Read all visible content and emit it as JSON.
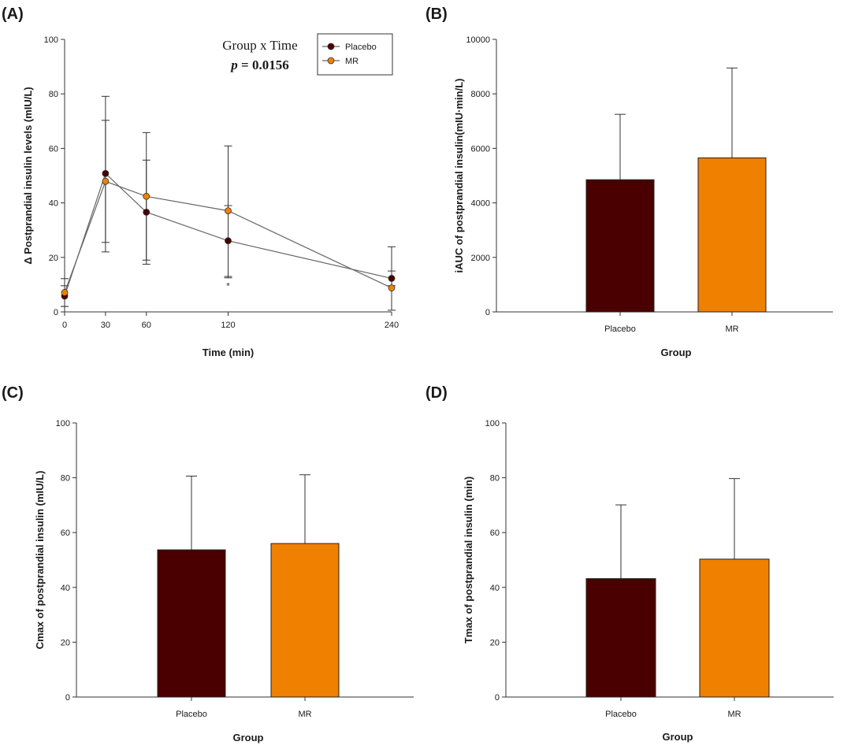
{
  "colors": {
    "placebo": "#4a0000",
    "mr": "#f08000",
    "axis": "#333333",
    "line": "#666666"
  },
  "chart_data": [
    {
      "id": "A",
      "panel_label": "(A)",
      "type": "line",
      "xlabel": "Time (min)",
      "ylabel": "Δ Postprandial insulin levels (mIU/L)",
      "xlim": [
        0,
        240
      ],
      "ylim": [
        0,
        100
      ],
      "x_ticks": [
        0,
        30,
        60,
        120,
        240
      ],
      "y_ticks": [
        0,
        20,
        40,
        60,
        80,
        100
      ],
      "annotation_title": "Group x Time",
      "annotation_p_label": "p",
      "annotation_p_value": "= 0.0156",
      "significance_marker": {
        "x": 120,
        "text": "*"
      },
      "series": [
        {
          "name": "Placebo",
          "color_key": "placebo",
          "x": [
            0,
            30,
            60,
            120,
            240
          ],
          "values": [
            5.8,
            50.8,
            36.6,
            26.1,
            12.3
          ],
          "err_upper": [
            9.6,
            70.3,
            55.7,
            39.0,
            15.0
          ],
          "err_lower": [
            2.0,
            25.5,
            17.5,
            13.0,
            9.6
          ]
        },
        {
          "name": "MR",
          "color_key": "mr",
          "x": [
            0,
            30,
            60,
            120,
            240
          ],
          "values": [
            7.1,
            47.9,
            42.4,
            37.1,
            8.8
          ],
          "err_upper": [
            12.2,
            79.1,
            65.8,
            60.9,
            23.9
          ],
          "err_lower": [
            2.0,
            22.0,
            19.0,
            12.5,
            0.6
          ]
        }
      ]
    },
    {
      "id": "B",
      "panel_label": "(B)",
      "type": "bar",
      "xlabel": "Group",
      "ylabel": "iAUC of postprandial insulin(mIU·min/L)",
      "categories": [
        "Placebo",
        "MR"
      ],
      "color_keys": [
        "placebo",
        "mr"
      ],
      "values": [
        4850,
        5650
      ],
      "errors": [
        2400,
        3300
      ],
      "ylim": [
        0,
        10000
      ],
      "y_ticks": [
        0,
        2000,
        4000,
        6000,
        8000,
        10000
      ]
    },
    {
      "id": "C",
      "panel_label": "(C)",
      "type": "bar",
      "xlabel": "Group",
      "ylabel": "Cmax of postprandial insulin (mIU/L)",
      "categories": [
        "Placebo",
        "MR"
      ],
      "color_keys": [
        "placebo",
        "mr"
      ],
      "values": [
        53.7,
        56.0
      ],
      "errors": [
        26.9,
        25.1
      ],
      "ylim": [
        0,
        100
      ],
      "y_ticks": [
        0,
        20,
        40,
        60,
        80,
        100
      ]
    },
    {
      "id": "D",
      "panel_label": "(D)",
      "type": "bar",
      "xlabel": "Group",
      "ylabel": "Tmax of postprandial insulin (min)",
      "categories": [
        "Placebo",
        "MR"
      ],
      "color_keys": [
        "placebo",
        "mr"
      ],
      "values": [
        43.2,
        50.3
      ],
      "errors": [
        26.9,
        29.4
      ],
      "ylim": [
        0,
        100
      ],
      "y_ticks": [
        0,
        20,
        40,
        60,
        80,
        100
      ]
    }
  ]
}
